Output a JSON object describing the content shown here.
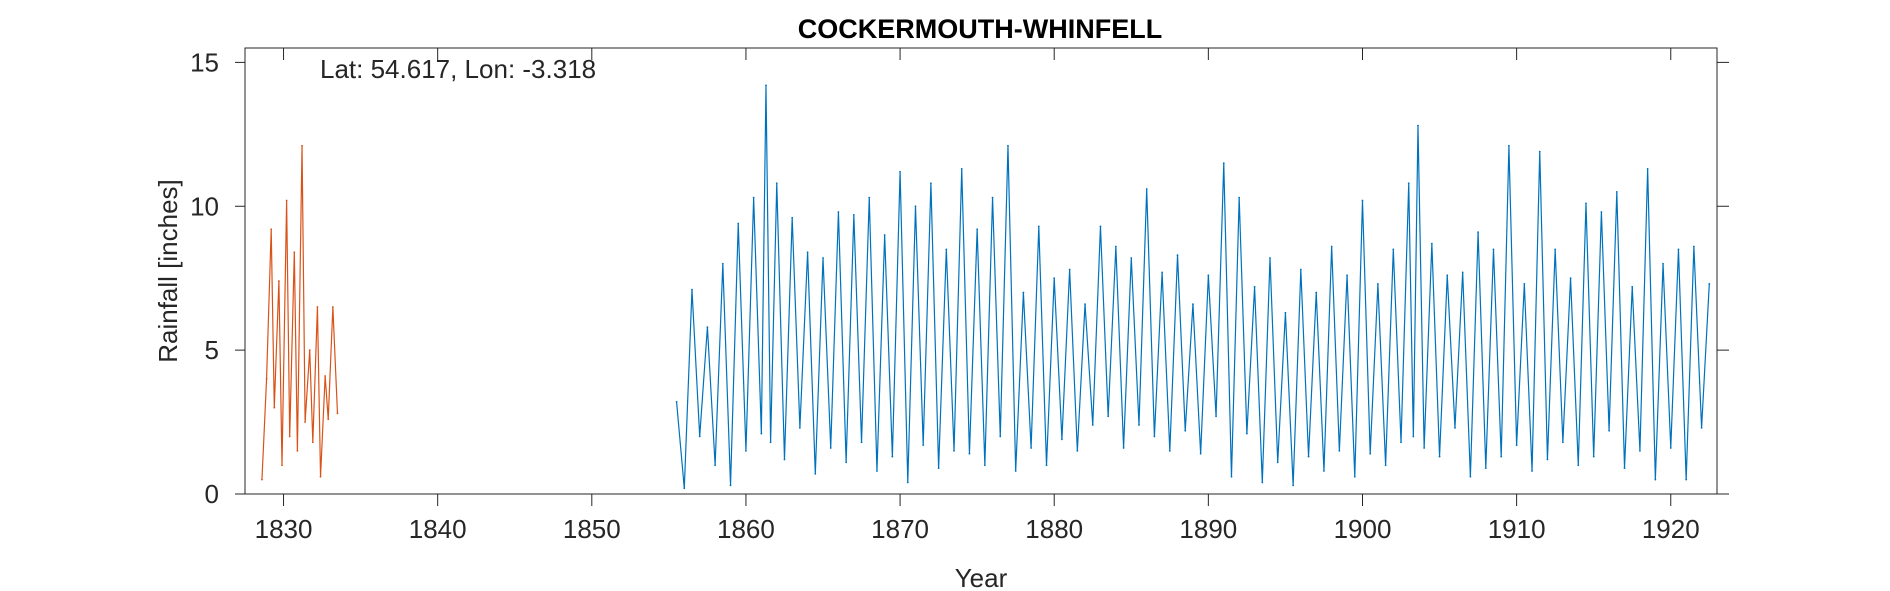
{
  "chart_data": {
    "type": "line",
    "title": "COCKERMOUTH-WHINFELL",
    "annotation": "Lat: 54.617, Lon: -3.318",
    "xlabel": "Year",
    "ylabel": "Rainfall [inches]",
    "xlim": [
      1827.5,
      1923
    ],
    "ylim": [
      0,
      15.5
    ],
    "xticks": [
      1830,
      1840,
      1850,
      1860,
      1870,
      1880,
      1890,
      1900,
      1910,
      1920
    ],
    "yticks": [
      0,
      5,
      10,
      15
    ],
    "grid": false,
    "series": [
      {
        "color": "#D95319",
        "x": [
          1828.6,
          1828.9,
          1829.2,
          1829.4,
          1829.7,
          1829.9,
          1830.2,
          1830.4,
          1830.7,
          1830.9,
          1831.2,
          1831.4,
          1831.7,
          1831.9,
          1832.2,
          1832.4,
          1832.7,
          1832.9,
          1833.2,
          1833.5
        ],
        "values": [
          0.5,
          4.0,
          9.2,
          3.0,
          7.4,
          1.0,
          10.2,
          2.0,
          8.4,
          1.5,
          12.1,
          2.5,
          5.0,
          1.8,
          6.5,
          0.6,
          4.1,
          2.6,
          6.5,
          2.8
        ]
      },
      {
        "color": "#0072BD",
        "x": [
          1855.5,
          1856.0,
          1856.5,
          1857.0,
          1857.5,
          1858.0,
          1858.5,
          1859.0,
          1859.5,
          1860.0,
          1860.5,
          1861.0,
          1861.3,
          1861.6,
          1862.0,
          1862.5,
          1863.0,
          1863.5,
          1864.0,
          1864.5,
          1865.0,
          1865.5,
          1866.0,
          1866.5,
          1867.0,
          1867.5,
          1868.0,
          1868.5,
          1869.0,
          1869.5,
          1870.0,
          1870.5,
          1871.0,
          1871.5,
          1872.0,
          1872.5,
          1873.0,
          1873.5,
          1874.0,
          1874.5,
          1875.0,
          1875.5,
          1876.0,
          1876.5,
          1877.0,
          1877.5,
          1878.0,
          1878.5,
          1879.0,
          1879.5,
          1880.0,
          1880.5,
          1881.0,
          1881.5,
          1882.0,
          1882.5,
          1883.0,
          1883.5,
          1884.0,
          1884.5,
          1885.0,
          1885.5,
          1886.0,
          1886.5,
          1887.0,
          1887.5,
          1888.0,
          1888.5,
          1889.0,
          1889.5,
          1890.0,
          1890.5,
          1891.0,
          1891.5,
          1892.0,
          1892.5,
          1893.0,
          1893.5,
          1894.0,
          1894.5,
          1895.0,
          1895.5,
          1896.0,
          1896.5,
          1897.0,
          1897.5,
          1898.0,
          1898.5,
          1899.0,
          1899.5,
          1900.0,
          1900.5,
          1901.0,
          1901.5,
          1902.0,
          1902.5,
          1903.0,
          1903.3,
          1903.6,
          1904.0,
          1904.5,
          1905.0,
          1905.5,
          1906.0,
          1906.5,
          1907.0,
          1907.5,
          1908.0,
          1908.5,
          1909.0,
          1909.5,
          1910.0,
          1910.5,
          1911.0,
          1911.5,
          1912.0,
          1912.5,
          1913.0,
          1913.5,
          1914.0,
          1914.5,
          1915.0,
          1915.5,
          1916.0,
          1916.5,
          1917.0,
          1917.5,
          1918.0,
          1918.5,
          1919.0,
          1919.5,
          1920.0,
          1920.5,
          1921.0,
          1921.5,
          1922.0,
          1922.5
        ],
        "values": [
          3.2,
          0.2,
          7.1,
          2.0,
          5.8,
          1.0,
          8.0,
          0.3,
          9.4,
          1.5,
          10.3,
          2.1,
          14.2,
          1.8,
          10.8,
          1.2,
          9.6,
          2.3,
          8.4,
          0.7,
          8.2,
          1.6,
          9.8,
          1.1,
          9.7,
          1.8,
          10.3,
          0.8,
          9.0,
          1.3,
          11.2,
          0.4,
          10.0,
          1.7,
          10.8,
          0.9,
          8.5,
          1.5,
          11.3,
          1.4,
          9.2,
          1.0,
          10.3,
          2.0,
          12.1,
          0.8,
          7.0,
          1.6,
          9.3,
          1.0,
          7.5,
          1.9,
          7.8,
          1.5,
          6.6,
          2.4,
          9.3,
          2.7,
          8.6,
          1.6,
          8.2,
          2.4,
          10.6,
          2.0,
          7.7,
          1.5,
          8.3,
          2.2,
          6.6,
          1.4,
          7.6,
          2.7,
          11.5,
          0.6,
          10.3,
          2.1,
          7.2,
          0.4,
          8.2,
          1.1,
          6.3,
          0.3,
          7.8,
          1.3,
          7.0,
          0.8,
          8.6,
          1.5,
          7.6,
          0.6,
          10.2,
          1.4,
          7.3,
          1.0,
          8.5,
          1.8,
          10.8,
          2.0,
          12.8,
          1.6,
          8.7,
          1.3,
          7.6,
          2.3,
          7.7,
          0.6,
          9.1,
          0.9,
          8.5,
          1.3,
          12.1,
          1.7,
          7.3,
          0.8,
          11.9,
          1.2,
          8.5,
          1.8,
          7.5,
          1.0,
          10.1,
          1.3,
          9.8,
          2.2,
          10.5,
          0.9,
          7.2,
          1.5,
          11.3,
          0.5,
          8.0,
          1.6,
          8.5,
          0.5,
          8.6,
          2.3,
          7.3
        ]
      }
    ]
  }
}
